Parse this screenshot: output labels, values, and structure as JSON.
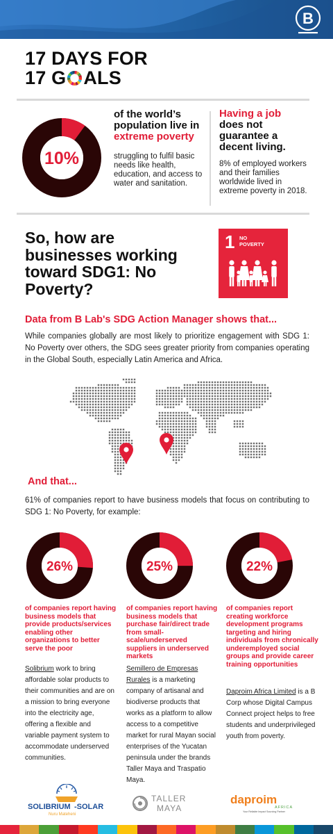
{
  "brand": {
    "bcorp_mark": "B",
    "bcorp_reg": "®"
  },
  "headline": {
    "line1": "17 DAYS FOR",
    "line2_pre": "17 G",
    "line2_post": "ALS"
  },
  "stat_poverty": {
    "percent": "10%",
    "percent_value": 10,
    "lead_a": "of the world’s population live in ",
    "lead_red": "extreme poverty",
    "body": "struggling to fulfil basic needs like health, education, and access to water and sanitation."
  },
  "stat_job": {
    "lead_red": "Having a job",
    "lead_b": " does not guarantee a decent living.",
    "body": "8% of employed workers and their families worldwide lived in extreme poverty in 2018."
  },
  "question": "So, how are businesses working toward SDG1: No Poverty?",
  "sdg_tile": {
    "number": "1",
    "label_1": "NO",
    "label_2": "POVERTY"
  },
  "section_title": "Data from B Lab's SDG Action Manager shows that...",
  "paragraph_1": "While companies globally are most likely to prioritize engagement with SDG 1: No Poverty over others, the SDG sees greater priority from companies operating in the Global South, especially Latin America and Africa.",
  "and_that": "And that...",
  "paragraph_2": "61% of companies report to have business models that focus on contributing to SDG 1: No Poverty, for example:",
  "columns": [
    {
      "percent": "26%",
      "percent_value": 26,
      "lead": "of companies report having business models that provide products/services enabling other organizations to better serve the poor",
      "company": "Solibrium",
      "body": " work to bring affordable solar products to their communities and are on a mission to bring everyone into the electricity age, offering a flexible and variable payment system to accommodate underserved communities."
    },
    {
      "percent": "25%",
      "percent_value": 25,
      "lead": "of companies report having business models that purchase fair/direct trade from small-scale/underserved suppliers in underserved markets",
      "company": "Semillero de Empresas Rurales",
      "body": " is a marketing company of artisanal and biodiverse products that works as a platform to allow access to a competitive market for rural Mayan social enterprises of the Yucatan peninsula under the brands Taller Maya and Traspatio Maya."
    },
    {
      "percent": "22%",
      "percent_value": 22,
      "lead": "of companies report creating workforce development programs targeting and hiring individuals from chronically underemployed social groups and provide career training opportunities",
      "company": "Daproim Africa Limited",
      "body": " is a B Corp whose Digital Campus Connect project helps to free students and underprivileged youth from poverty."
    }
  ],
  "logos": {
    "solibrium_1": "SOLIBRIUM",
    "solibrium_2": "-SOLAR",
    "solibrium_tag": "Nuru Mateheni",
    "taller_1": "TALLER",
    "taller_2": "MAYA",
    "daproim": "daproim",
    "daproim_sub": "AFRICA",
    "daproim_tag": "Your Reliable Impact Sourcing Partner"
  },
  "colors": {
    "red": "#e11d37",
    "donut_dark": "#2a0606",
    "band_blue": "#1f5fa0",
    "sdg_red": "#e5243b"
  },
  "sdg_strip": [
    "#e5243b",
    "#dda63a",
    "#4c9f38",
    "#c5192d",
    "#ff3a21",
    "#26bde2",
    "#fcc30b",
    "#a21942",
    "#fd6925",
    "#dd1367",
    "#fd9d24",
    "#bf8b2e",
    "#3f7e44",
    "#0a97d9",
    "#56c02b",
    "#00689d",
    "#19486a"
  ]
}
